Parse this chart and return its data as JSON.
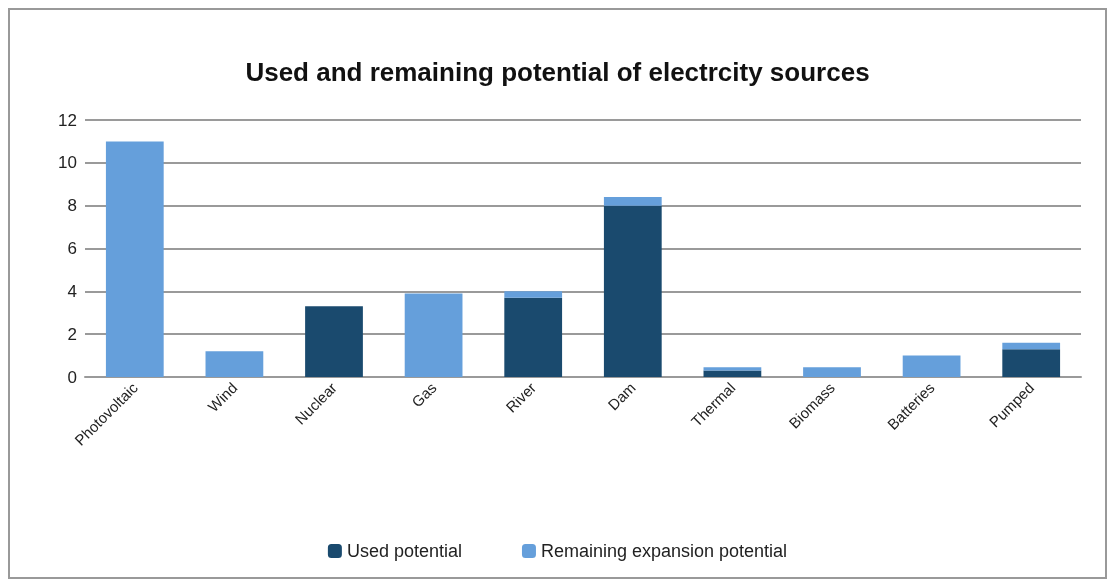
{
  "chart_data": {
    "type": "bar",
    "title": "Used and remaining potential of electrcity sources",
    "categories": [
      "Photovoltaic",
      "Wind",
      "Nuclear",
      "Gas",
      "River",
      "Dam",
      "Thermal",
      "Biomass",
      "Batteries",
      "Pumped"
    ],
    "stacked": true,
    "series": [
      {
        "name": "Used potential",
        "color": "#1a4a6e",
        "values": [
          0,
          0,
          3.3,
          0,
          3.7,
          8.0,
          0.3,
          0,
          0,
          1.3
        ]
      },
      {
        "name": "Remaining expansion potential",
        "color": "#659fdb",
        "values": [
          11,
          1.2,
          0,
          3.9,
          0.3,
          0.4,
          0.15,
          0.45,
          1.0,
          0.3
        ]
      }
    ],
    "ylim": [
      0,
      12
    ],
    "yticks": [
      0,
      2,
      4,
      6,
      8,
      10,
      12
    ],
    "grid": "y",
    "legend": "bottom"
  }
}
